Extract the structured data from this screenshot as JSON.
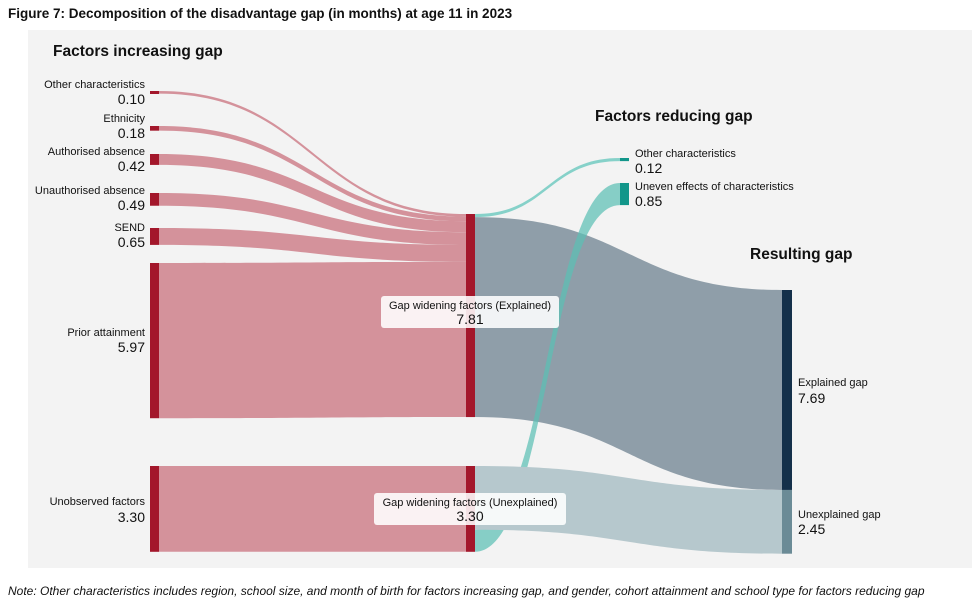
{
  "figure_title": "Figure 7: Decomposition of the disadvantage gap (in months) at age 11 in 2023",
  "note": "Note: Other characteristics includes region, school size, and  month of birth for factors increasing gap, and gender, cohort attainment and school type for factors reducing gap",
  "colors": {
    "increase_node": "#a3172b",
    "increase_link": "#d4929b",
    "reduce_node": "#12968a",
    "reduce_link": "#86d1c9",
    "explained_node": "#14304a",
    "explained_link": "#8f9ea9",
    "unexplained_node": "#6b8b96",
    "unexplained_link": "#b6c8cd"
  },
  "chart_data": {
    "type": "sankey",
    "unit": "months",
    "headers": {
      "increasing": "Factors increasing gap",
      "reducing": "Factors reducing gap",
      "resulting": "Resulting gap"
    },
    "nodes": [
      {
        "id": "other_inc",
        "label": "Other characteristics",
        "value": "0.10",
        "column": 0
      },
      {
        "id": "ethnicity",
        "label": "Ethnicity",
        "value": "0.18",
        "column": 0
      },
      {
        "id": "auth_abs",
        "label": "Authorised absence",
        "value": "0.42",
        "column": 0
      },
      {
        "id": "unauth_abs",
        "label": "Unauthorised absence",
        "value": "0.49",
        "column": 0
      },
      {
        "id": "send",
        "label": "SEND",
        "value": "0.65",
        "column": 0
      },
      {
        "id": "prior",
        "label": "Prior attainment",
        "value": "5.97",
        "column": 0
      },
      {
        "id": "unobserved",
        "label": "Unobserved factors",
        "value": "3.30",
        "column": 0
      },
      {
        "id": "gw_explained",
        "label": "Gap widening factors (Explained)",
        "value": "7.81",
        "column": 1
      },
      {
        "id": "gw_unexplained",
        "label": "Gap widening factors (Unexplained)",
        "value": "3.30",
        "column": 1
      },
      {
        "id": "other_red",
        "label": "Other characteristics",
        "value": "0.12",
        "column": 2
      },
      {
        "id": "uneven",
        "label": "Uneven effects of characteristics",
        "value": "0.85",
        "column": 2
      },
      {
        "id": "explained_gap",
        "label": "Explained gap",
        "value": "7.69",
        "column": 3
      },
      {
        "id": "unexplained_gap",
        "label": "Unexplained gap",
        "value": "2.45",
        "column": 3
      }
    ],
    "links": [
      {
        "source": "other_inc",
        "target": "gw_explained",
        "value": 0.1
      },
      {
        "source": "ethnicity",
        "target": "gw_explained",
        "value": 0.18
      },
      {
        "source": "auth_abs",
        "target": "gw_explained",
        "value": 0.42
      },
      {
        "source": "unauth_abs",
        "target": "gw_explained",
        "value": 0.49
      },
      {
        "source": "send",
        "target": "gw_explained",
        "value": 0.65
      },
      {
        "source": "prior",
        "target": "gw_explained",
        "value": 5.97
      },
      {
        "source": "unobserved",
        "target": "gw_unexplained",
        "value": 3.3
      },
      {
        "source": "gw_explained",
        "target": "other_red",
        "value": 0.12
      },
      {
        "source": "gw_explained",
        "target": "explained_gap",
        "value": 7.69
      },
      {
        "source": "gw_unexplained",
        "target": "uneven",
        "value": 0.85
      },
      {
        "source": "gw_unexplained",
        "target": "unexplained_gap",
        "value": 2.45
      }
    ]
  }
}
